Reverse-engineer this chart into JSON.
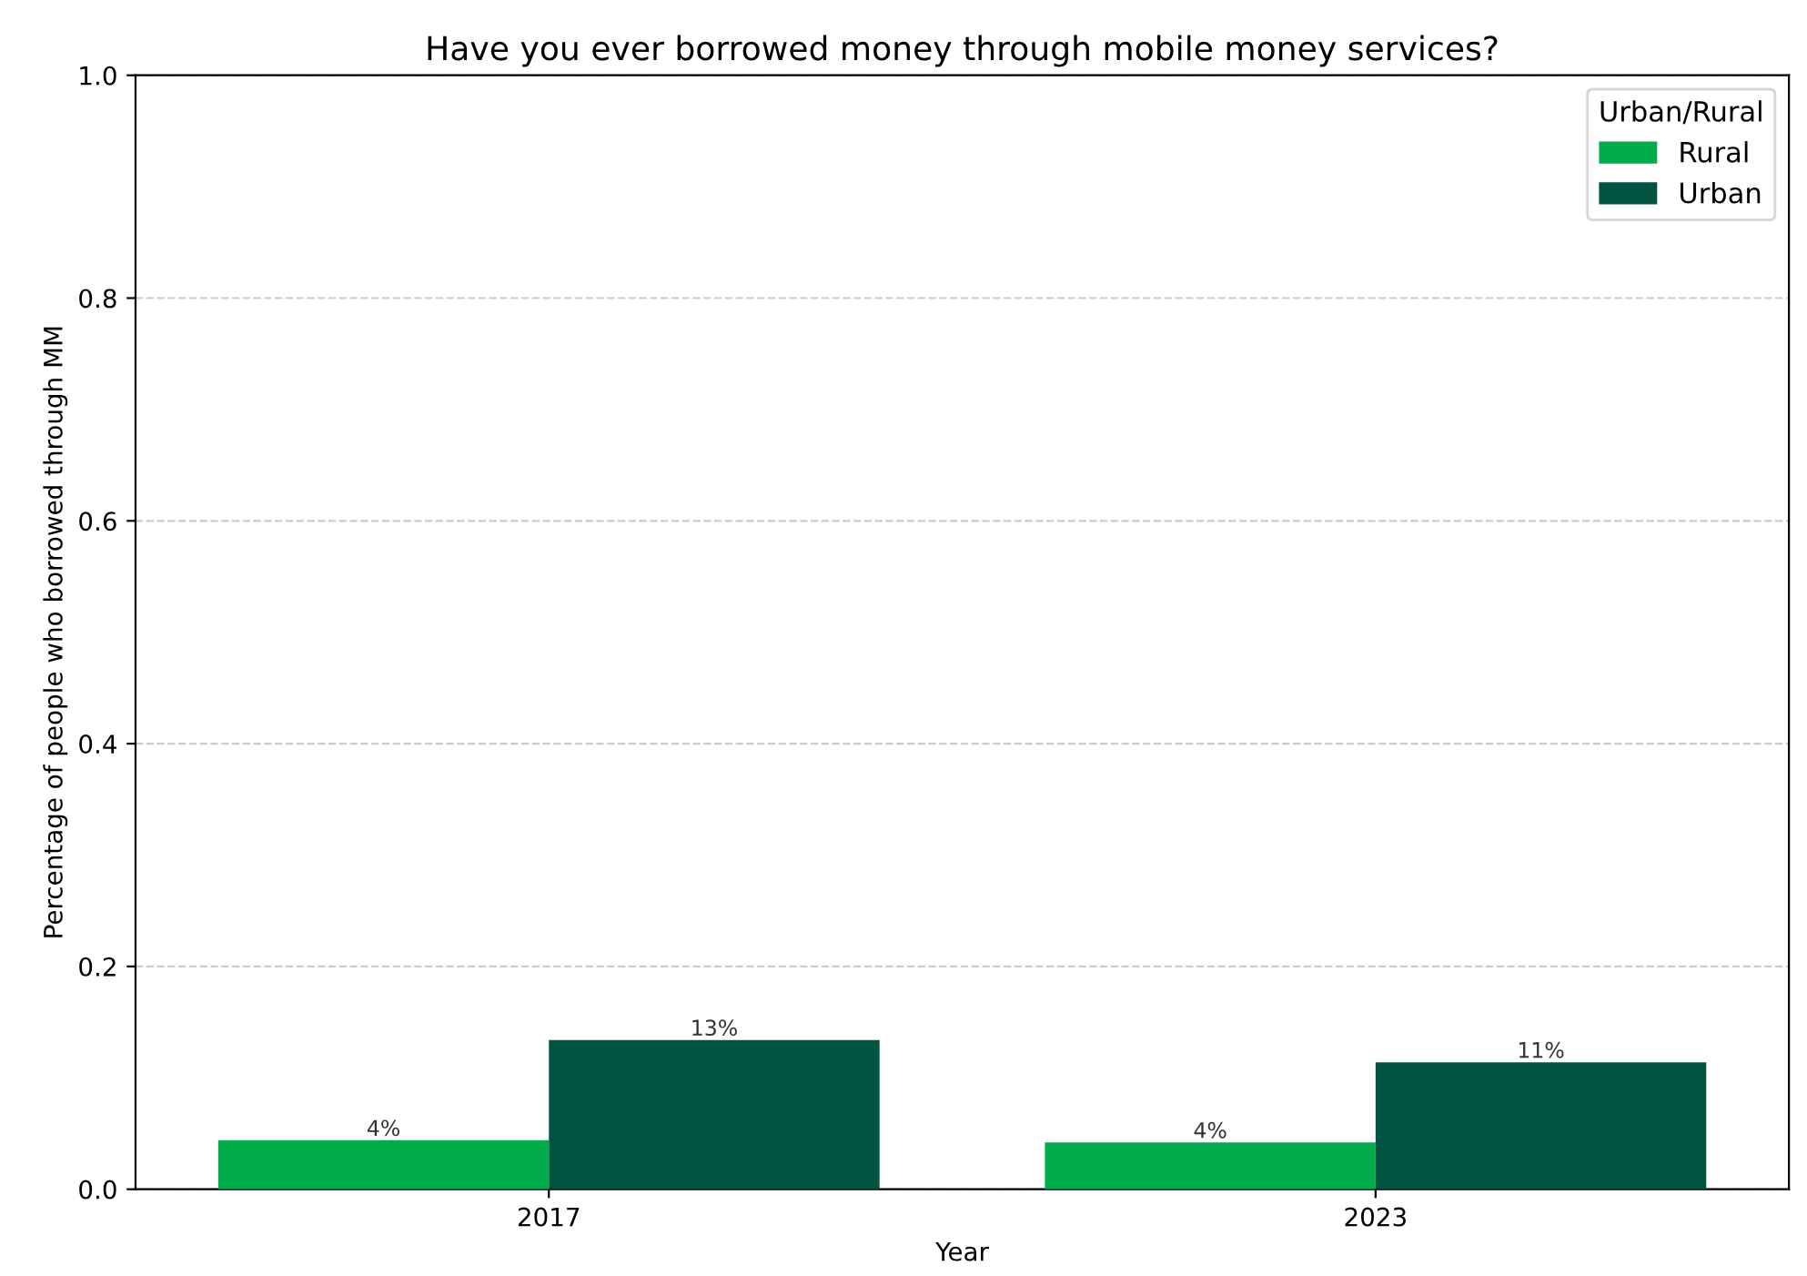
{
  "chart_data": {
    "type": "bar",
    "title": "Have you ever borrowed money through mobile money services?",
    "xlabel": "Year",
    "ylabel": "Percentage of people who borrowed through MM",
    "legend_title": "Urban/Rural",
    "categories": [
      "2017",
      "2023"
    ],
    "series": [
      {
        "name": "Rural",
        "color": "#00ad4a",
        "values": [
          0.044,
          0.042
        ],
        "value_labels": [
          "4%",
          "4%"
        ]
      },
      {
        "name": "Urban",
        "color": "#005440",
        "values": [
          0.134,
          0.114
        ],
        "value_labels": [
          "13%",
          "11%"
        ]
      }
    ],
    "ylim": [
      0,
      1.0
    ],
    "yticks": [
      {
        "value": 0,
        "label": "0.0"
      },
      0.2,
      0.4,
      0.6,
      0.8,
      {
        "value": 1.0,
        "label": "1.0"
      }
    ],
    "grid": "y",
    "legend": "top right"
  }
}
